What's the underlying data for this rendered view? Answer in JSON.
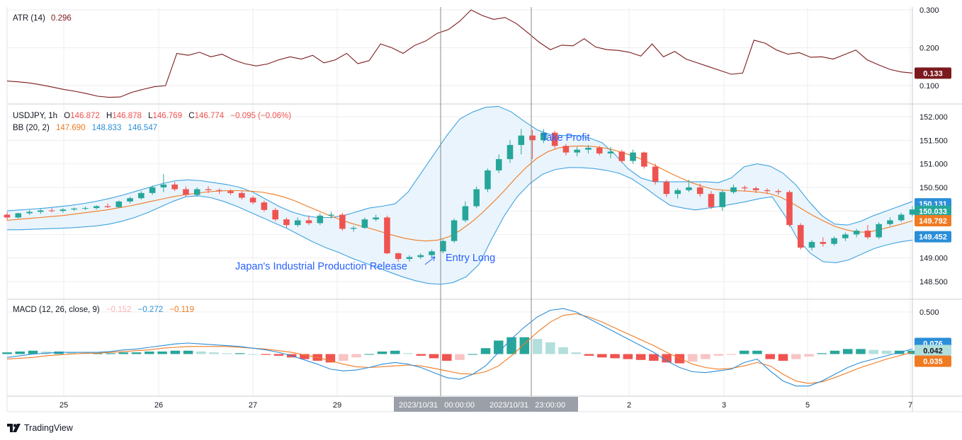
{
  "branding": {
    "name": "TradingView"
  },
  "colors": {
    "atr_line": "#7b1a1e",
    "bb_basis": "#f07a22",
    "bb_band": "#3fa3e0",
    "bb_fill": "#eaf4fc",
    "macd_line": "#2b8ed8",
    "signal_line": "#f07a22",
    "candle_up": "#26a69a",
    "candle_down": "#ef5350",
    "hist_up_strong": "#26a69a",
    "hist_up_weak": "#b2dfdb",
    "hist_down_strong": "#ef5350",
    "hist_down_weak": "#f8c4c4",
    "annotation": "#2962ff",
    "grid": "#eeeeee"
  },
  "legends": {
    "atr": {
      "name": "ATR (14)",
      "value": "0.296"
    },
    "price": {
      "symbol": "USDJPY, 1h",
      "o_label": "O",
      "o": "146.872",
      "h_label": "H",
      "h": "146.878",
      "l_label": "L",
      "l": "146.769",
      "c_label": "C",
      "c": "146.774",
      "change": "−0.095 (−0.06%)"
    },
    "bb": {
      "name": "BB (20, 2)",
      "basis": "147.690",
      "upper": "148.833",
      "lower": "146.547"
    },
    "macd": {
      "name": "MACD (12, 26, close, 9)",
      "hist": "−0.152",
      "macd": "−0.272",
      "signal": "−0.119"
    }
  },
  "annotations": {
    "release": "Japan's Industrial Production Release",
    "entry": "Entry Long",
    "take_profit": "Take Profit"
  },
  "crosshair_labels": {
    "entry_time": "2023/10/31   00:00:00",
    "exit_time": "2023/10/31   23:00:00"
  },
  "chart_data": {
    "type": "candlestick",
    "x_ticks": [
      "25",
      "26",
      "27",
      "29",
      "2",
      "3",
      "5",
      "7"
    ],
    "atr": {
      "ticks": [
        "0.300",
        "0.200",
        "0.100"
      ],
      "ylim": [
        0.08,
        0.32
      ],
      "last": "0.133",
      "line": [
        0.112,
        0.11,
        0.107,
        0.102,
        0.096,
        0.09,
        0.085,
        0.079,
        0.072,
        0.069,
        0.07,
        0.082,
        0.09,
        0.097,
        0.1,
        0.185,
        0.18,
        0.188,
        0.176,
        0.183,
        0.168,
        0.158,
        0.152,
        0.157,
        0.168,
        0.176,
        0.17,
        0.18,
        0.16,
        0.168,
        0.185,
        0.158,
        0.166,
        0.21,
        0.2,
        0.185,
        0.206,
        0.218,
        0.238,
        0.248,
        0.27,
        0.3,
        0.285,
        0.275,
        0.28,
        0.264,
        0.24,
        0.215,
        0.195,
        0.207,
        0.205,
        0.224,
        0.202,
        0.195,
        0.193,
        0.188,
        0.178,
        0.21,
        0.176,
        0.19,
        0.17,
        0.16,
        0.15,
        0.14,
        0.13,
        0.133,
        0.22,
        0.212,
        0.194,
        0.183,
        0.187,
        0.175,
        0.176,
        0.17,
        0.182,
        0.194,
        0.168,
        0.155,
        0.143,
        0.136,
        0.133
      ]
    },
    "price": {
      "ticks": [
        "152.000",
        "151.500",
        "151.000",
        "150.500",
        "150.000",
        "149.500",
        "149.000",
        "148.500"
      ],
      "ylim": [
        148.2,
        152.3
      ],
      "ohlc": [
        [
          149.92,
          149.98,
          149.8,
          149.86
        ],
        [
          149.86,
          149.96,
          149.84,
          149.95
        ],
        [
          149.95,
          150.02,
          149.91,
          149.98
        ],
        [
          149.98,
          150.04,
          149.94,
          150.01
        ],
        [
          150.01,
          150.06,
          149.97,
          150.0
        ],
        [
          150.0,
          150.06,
          149.96,
          150.03
        ],
        [
          150.03,
          150.07,
          150.0,
          150.05
        ],
        [
          150.05,
          150.09,
          150.02,
          150.06
        ],
        [
          150.06,
          150.12,
          150.03,
          150.1
        ],
        [
          150.1,
          150.16,
          150.06,
          150.08
        ],
        [
          150.08,
          150.22,
          150.06,
          150.2
        ],
        [
          150.2,
          150.3,
          150.16,
          150.27
        ],
        [
          150.27,
          150.42,
          150.24,
          150.38
        ],
        [
          150.38,
          150.54,
          150.34,
          150.5
        ],
        [
          150.5,
          150.78,
          150.4,
          150.56
        ],
        [
          150.56,
          150.62,
          150.42,
          150.46
        ],
        [
          150.46,
          150.52,
          150.3,
          150.34
        ],
        [
          150.34,
          150.5,
          150.3,
          150.46
        ],
        [
          150.46,
          150.52,
          150.38,
          150.44
        ],
        [
          150.44,
          150.48,
          150.36,
          150.42
        ],
        [
          150.42,
          150.46,
          150.34,
          150.38
        ],
        [
          150.38,
          150.42,
          150.24,
          150.28
        ],
        [
          150.28,
          150.32,
          150.14,
          150.18
        ],
        [
          150.18,
          150.22,
          149.98,
          150.02
        ],
        [
          150.02,
          150.06,
          149.78,
          149.82
        ],
        [
          149.82,
          149.86,
          149.64,
          149.7
        ],
        [
          149.7,
          149.86,
          149.66,
          149.8
        ],
        [
          149.8,
          149.9,
          149.7,
          149.74
        ],
        [
          149.74,
          149.95,
          149.7,
          149.9
        ],
        [
          149.9,
          149.98,
          149.84,
          149.92
        ],
        [
          149.92,
          149.96,
          149.58,
          149.62
        ],
        [
          149.62,
          149.68,
          149.56,
          149.64
        ],
        [
          149.64,
          149.86,
          149.62,
          149.82
        ],
        [
          149.82,
          149.92,
          149.78,
          149.86
        ],
        [
          149.86,
          149.9,
          149.08,
          149.1
        ],
        [
          149.1,
          149.12,
          148.92,
          148.98
        ],
        [
          148.98,
          149.06,
          148.92,
          149.02
        ],
        [
          149.02,
          149.1,
          148.98,
          149.06
        ],
        [
          149.06,
          149.18,
          149.02,
          149.14
        ],
        [
          149.14,
          149.4,
          149.1,
          149.36
        ],
        [
          149.36,
          149.84,
          149.32,
          149.8
        ],
        [
          149.8,
          150.2,
          149.76,
          150.1
        ],
        [
          150.1,
          150.52,
          150.06,
          150.46
        ],
        [
          150.46,
          150.9,
          150.4,
          150.86
        ],
        [
          150.86,
          151.2,
          150.8,
          151.1
        ],
        [
          151.1,
          151.5,
          151.02,
          151.4
        ],
        [
          151.4,
          151.74,
          151.2,
          151.6
        ],
        [
          151.6,
          151.72,
          151.1,
          151.5
        ],
        [
          151.5,
          151.74,
          151.44,
          151.66
        ],
        [
          151.66,
          151.7,
          151.32,
          151.38
        ],
        [
          151.38,
          151.42,
          151.18,
          151.24
        ],
        [
          151.24,
          151.36,
          151.16,
          151.3
        ],
        [
          151.3,
          151.4,
          151.22,
          151.34
        ],
        [
          151.34,
          151.38,
          151.18,
          151.22
        ],
        [
          151.22,
          151.36,
          151.12,
          151.26
        ],
        [
          151.26,
          151.3,
          151.02,
          151.06
        ],
        [
          151.06,
          151.3,
          151.0,
          151.24
        ],
        [
          151.24,
          151.26,
          150.9,
          150.94
        ],
        [
          150.94,
          151.0,
          150.56,
          150.62
        ],
        [
          150.62,
          150.66,
          150.3,
          150.36
        ],
        [
          150.36,
          150.48,
          150.26,
          150.44
        ],
        [
          150.44,
          150.66,
          150.4,
          150.5
        ],
        [
          150.5,
          150.58,
          150.3,
          150.36
        ],
        [
          150.36,
          150.42,
          150.04,
          150.08
        ],
        [
          150.08,
          150.44,
          150.0,
          150.4
        ],
        [
          150.4,
          150.56,
          150.36,
          150.5
        ],
        [
          150.5,
          150.54,
          150.42,
          150.48
        ],
        [
          150.48,
          150.52,
          150.38,
          150.44
        ],
        [
          150.44,
          150.48,
          150.36,
          150.42
        ],
        [
          150.42,
          150.46,
          150.34,
          150.4
        ],
        [
          150.4,
          150.44,
          149.66,
          149.7
        ],
        [
          149.7,
          149.74,
          149.18,
          149.22
        ],
        [
          149.22,
          149.38,
          149.16,
          149.34
        ],
        [
          149.34,
          149.44,
          149.24,
          149.3
        ],
        [
          149.3,
          149.46,
          149.26,
          149.42
        ],
        [
          149.42,
          149.54,
          149.36,
          149.5
        ],
        [
          149.5,
          149.62,
          149.44,
          149.58
        ],
        [
          149.58,
          149.7,
          149.4,
          149.44
        ],
        [
          149.44,
          149.76,
          149.4,
          149.72
        ],
        [
          149.72,
          149.86,
          149.68,
          149.8
        ],
        [
          149.8,
          149.96,
          149.76,
          149.92
        ],
        [
          149.92,
          150.1,
          149.88,
          150.03
        ]
      ],
      "bb_basis": [
        149.8,
        149.82,
        149.84,
        149.86,
        149.88,
        149.9,
        149.93,
        149.96,
        149.99,
        150.02,
        150.06,
        150.1,
        150.15,
        150.2,
        150.25,
        150.3,
        150.34,
        150.37,
        150.4,
        150.42,
        150.43,
        150.43,
        150.42,
        150.4,
        150.36,
        150.3,
        150.22,
        150.12,
        150.02,
        149.92,
        149.83,
        149.75,
        149.68,
        149.62,
        149.55,
        149.48,
        149.42,
        149.38,
        149.36,
        149.38,
        149.45,
        149.58,
        149.75,
        149.95,
        150.18,
        150.42,
        150.68,
        150.92,
        151.12,
        151.26,
        151.34,
        151.37,
        151.38,
        151.37,
        151.34,
        151.29,
        151.22,
        151.14,
        151.04,
        150.93,
        150.81,
        150.7,
        150.6,
        150.52,
        150.46,
        150.44,
        150.43,
        150.42,
        150.4,
        150.37,
        150.3,
        150.18,
        150.04,
        149.9,
        149.78,
        149.67,
        149.6,
        149.55,
        149.55,
        149.6,
        149.66,
        149.72,
        149.79
      ],
      "bb_upper": [
        150.0,
        150.02,
        150.04,
        150.06,
        150.09,
        150.12,
        150.16,
        150.21,
        150.27,
        150.34,
        150.42,
        150.5,
        150.58,
        150.64,
        150.66,
        150.64,
        150.6,
        150.56,
        150.5,
        150.4,
        150.25,
        150.1,
        149.98,
        149.9,
        149.86,
        149.86,
        149.9,
        149.98,
        150.06,
        150.1,
        150.15,
        150.4,
        150.8,
        151.2,
        151.6,
        151.95,
        152.1,
        152.2,
        152.22,
        152.1,
        151.9,
        151.72,
        151.62,
        151.6,
        151.6,
        151.55,
        151.45,
        151.2,
        150.9,
        150.7,
        150.62,
        150.62,
        150.62,
        150.62,
        150.62,
        150.6,
        150.7,
        150.94,
        151.0,
        150.95,
        150.8,
        150.55,
        150.2,
        149.9,
        149.72,
        149.7,
        149.78,
        149.9,
        150.0,
        150.1,
        150.2
      ],
      "bb_lower": [
        149.6,
        149.6,
        149.61,
        149.62,
        149.63,
        149.64,
        149.66,
        149.68,
        149.72,
        149.78,
        149.86,
        149.96,
        150.08,
        150.2,
        150.3,
        150.32,
        150.28,
        150.2,
        150.1,
        149.98,
        149.86,
        149.74,
        149.62,
        149.48,
        149.34,
        149.22,
        149.12,
        149.0,
        148.9,
        148.8,
        148.7,
        148.6,
        148.52,
        148.46,
        148.44,
        148.48,
        148.6,
        148.86,
        149.4,
        149.9,
        150.3,
        150.58,
        150.78,
        150.88,
        150.92,
        150.92,
        150.9,
        150.86,
        150.8,
        150.68,
        150.5,
        150.3,
        150.12,
        150.06,
        150.02,
        150.06,
        150.1,
        150.15,
        150.2,
        150.26,
        150.3,
        149.9,
        149.4,
        149.1,
        148.92,
        148.9,
        148.96,
        149.08,
        149.2,
        149.28,
        149.34,
        149.38
      ],
      "price_labels": {
        "upper": "150.131",
        "close": "150.033",
        "basis": "149.792",
        "lower": "149.452"
      }
    },
    "macd": {
      "ticks": [
        "0.500"
      ],
      "ylim": [
        -0.58,
        0.62
      ],
      "macd_line": [
        -0.04,
        -0.02,
        0.0,
        0.01,
        0.02,
        0.02,
        0.02,
        0.02,
        0.03,
        0.05,
        0.06,
        0.08,
        0.1,
        0.12,
        0.13,
        0.12,
        0.11,
        0.1,
        0.09,
        0.07,
        0.05,
        0.02,
        -0.02,
        -0.07,
        -0.12,
        -0.18,
        -0.2,
        -0.19,
        -0.16,
        -0.12,
        -0.1,
        -0.12,
        -0.16,
        -0.22,
        -0.28,
        -0.3,
        -0.24,
        -0.14,
        0.02,
        0.18,
        0.32,
        0.44,
        0.52,
        0.54,
        0.5,
        0.42,
        0.34,
        0.26,
        0.18,
        0.1,
        0.02,
        -0.08,
        -0.16,
        -0.21,
        -0.22,
        -0.2,
        -0.18,
        -0.1,
        -0.06,
        -0.2,
        -0.32,
        -0.38,
        -0.38,
        -0.32,
        -0.24,
        -0.16,
        -0.1,
        -0.06,
        -0.02,
        0.02,
        0.06
      ],
      "signal_line": [
        -0.06,
        -0.05,
        -0.04,
        -0.02,
        -0.01,
        0.0,
        0.01,
        0.01,
        0.02,
        0.03,
        0.04,
        0.05,
        0.07,
        0.08,
        0.09,
        0.09,
        0.09,
        0.09,
        0.08,
        0.07,
        0.06,
        0.04,
        0.02,
        -0.01,
        -0.04,
        -0.08,
        -0.12,
        -0.15,
        -0.16,
        -0.15,
        -0.14,
        -0.13,
        -0.14,
        -0.17,
        -0.2,
        -0.23,
        -0.24,
        -0.21,
        -0.14,
        -0.02,
        0.12,
        0.26,
        0.38,
        0.46,
        0.48,
        0.44,
        0.38,
        0.31,
        0.24,
        0.17,
        0.1,
        0.02,
        -0.05,
        -0.12,
        -0.16,
        -0.18,
        -0.17,
        -0.14,
        -0.1,
        -0.14,
        -0.24,
        -0.32,
        -0.35,
        -0.33,
        -0.28,
        -0.22,
        -0.16,
        -0.11,
        -0.06,
        -0.02,
        0.02
      ],
      "histogram": [
        0.02,
        0.03,
        0.04,
        0.03,
        0.03,
        0.02,
        0.01,
        0.01,
        0.01,
        0.02,
        0.02,
        0.03,
        0.03,
        0.04,
        0.04,
        0.03,
        0.02,
        0.01,
        0.01,
        0.0,
        -0.01,
        -0.02,
        -0.04,
        -0.06,
        -0.08,
        -0.1,
        -0.08,
        -0.04,
        0.0,
        0.03,
        0.04,
        0.01,
        -0.02,
        -0.05,
        -0.08,
        -0.07,
        0.0,
        0.07,
        0.16,
        0.2,
        0.2,
        0.18,
        0.14,
        0.08,
        0.02,
        -0.02,
        -0.04,
        -0.05,
        -0.06,
        -0.07,
        -0.08,
        -0.1,
        -0.11,
        -0.09,
        -0.06,
        -0.02,
        -0.01,
        0.04,
        0.04,
        -0.06,
        -0.08,
        -0.06,
        -0.03,
        0.01,
        0.04,
        0.06,
        0.06,
        0.05,
        0.04,
        0.04,
        0.04
      ],
      "price_labels": {
        "macd": "0.076",
        "hist": "0.042",
        "signal": "0.035"
      }
    }
  }
}
